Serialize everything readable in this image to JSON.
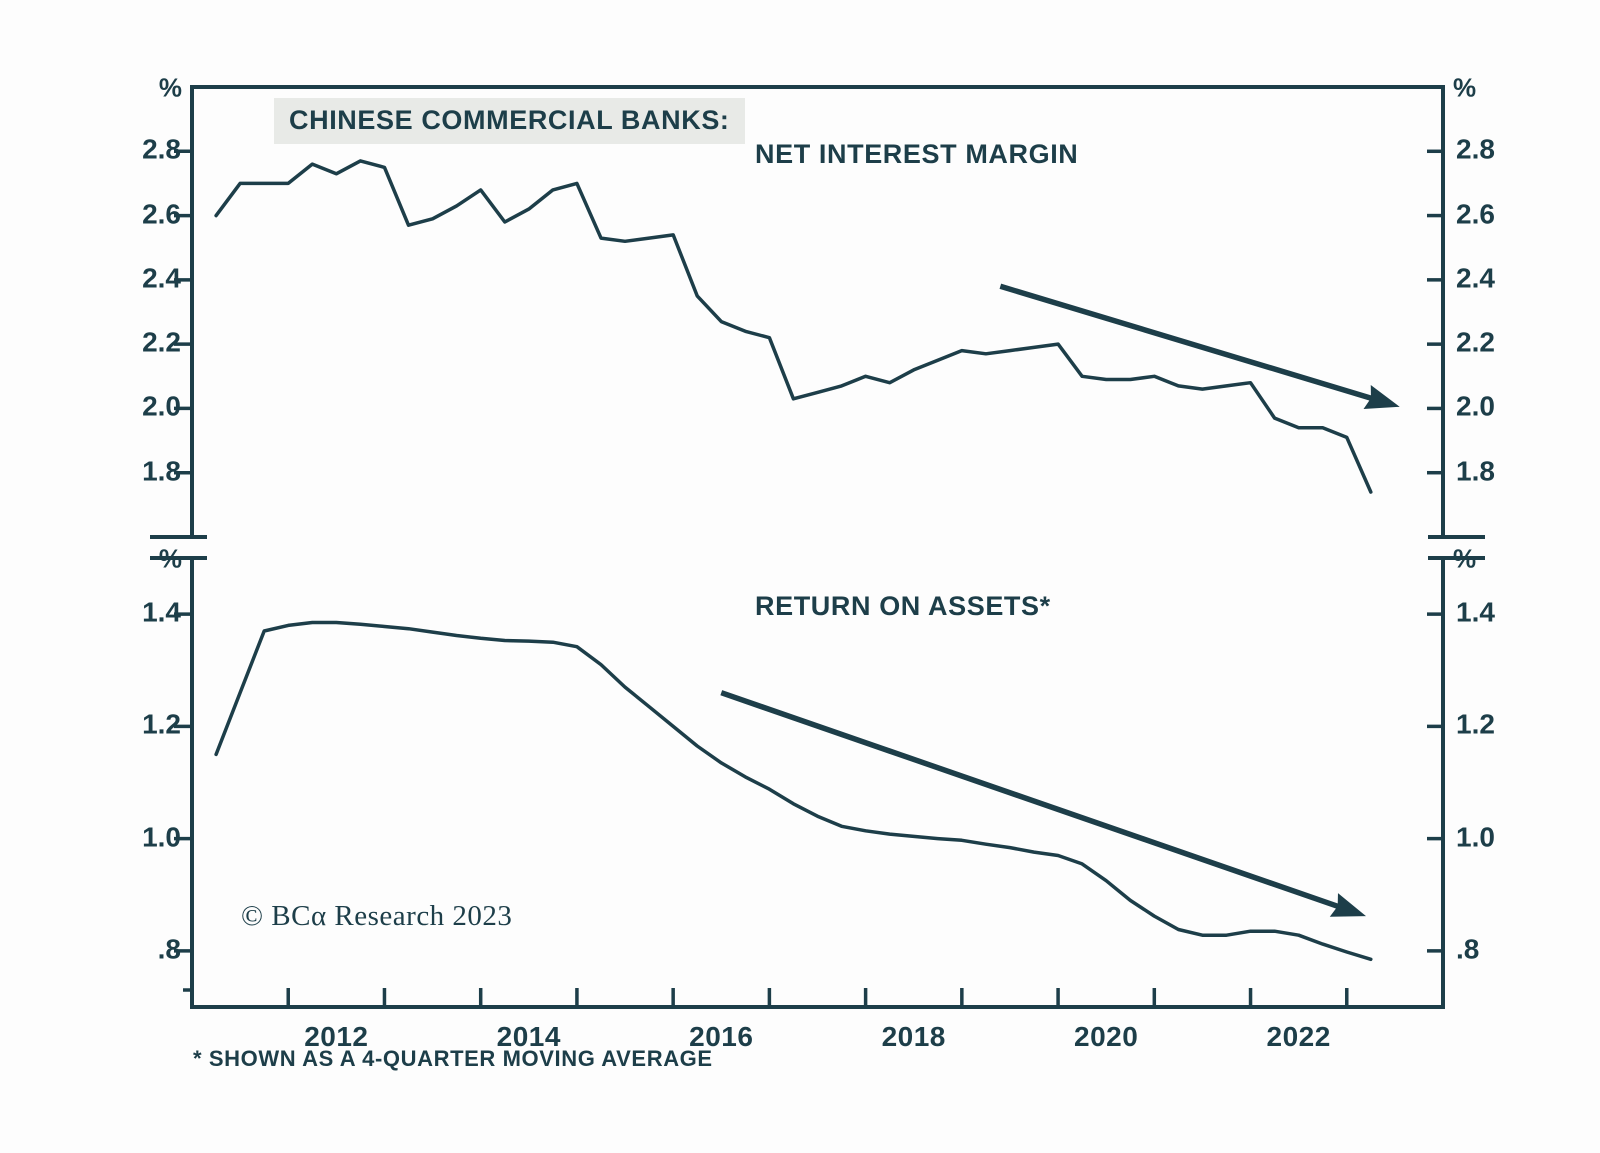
{
  "page": {
    "title": "CHINESE COMMERCIAL BANKS:",
    "watermark": "© BCα Research 2023",
    "footnote": "* SHOWN AS A 4-QUARTER MOVING AVERAGE"
  },
  "colors": {
    "line": "#1d3e49",
    "text": "#1d3e49",
    "title_box_bg": "#e8eae7",
    "background": "#fdfdfd"
  },
  "chart_data": {
    "type": "line",
    "title": "CHINESE COMMERCIAL BANKS:",
    "footnote": "* SHOWN AS A 4-QUARTER MOVING AVERAGE",
    "x_axis": {
      "range": [
        2011,
        2024
      ],
      "year_ticks": [
        2012,
        2013,
        2014,
        2015,
        2016,
        2017,
        2018,
        2019,
        2020,
        2021,
        2022,
        2023
      ],
      "labeled_years": [
        2012,
        2014,
        2016,
        2018,
        2020,
        2022
      ],
      "grid": false
    },
    "panels": [
      {
        "name": "net-interest-margin",
        "title": "NET INTEREST MARGIN",
        "unit": "%",
        "ylim": [
          1.6,
          3.0
        ],
        "yticks": [
          {
            "v": 2.8,
            "label": "2.8"
          },
          {
            "v": 2.6,
            "label": "2.6"
          },
          {
            "v": 2.4,
            "label": "2.4"
          },
          {
            "v": 2.2,
            "label": "2.2"
          },
          {
            "v": 2.0,
            "label": "2.0"
          },
          {
            "v": 1.8,
            "label": "1.8"
          }
        ],
        "series": {
          "name": "Net interest margin (%)",
          "start": 2011.25,
          "step": 0.25,
          "values": [
            2.6,
            2.7,
            2.7,
            2.7,
            2.76,
            2.73,
            2.77,
            2.75,
            2.57,
            2.59,
            2.63,
            2.68,
            2.58,
            2.62,
            2.68,
            2.7,
            2.53,
            2.52,
            2.53,
            2.54,
            2.35,
            2.27,
            2.24,
            2.22,
            2.03,
            2.05,
            2.07,
            2.1,
            2.08,
            2.12,
            2.15,
            2.18,
            2.17,
            2.18,
            2.19,
            2.2,
            2.1,
            2.09,
            2.09,
            2.1,
            2.07,
            2.06,
            2.07,
            2.08,
            1.97,
            1.94,
            1.94,
            1.91,
            1.74
          ]
        },
        "trend_arrow": {
          "x1": 2019.4,
          "y1": 2.38,
          "x2": 2023.55,
          "y2": 2.005
        }
      },
      {
        "name": "return-on-assets",
        "title": "RETURN ON ASSETS*",
        "unit": "%",
        "ylim": [
          0.7,
          1.5
        ],
        "yticks": [
          {
            "v": 1.4,
            "label": "1.4"
          },
          {
            "v": 1.2,
            "label": "1.2"
          },
          {
            "v": 1.0,
            "label": "1.0"
          },
          {
            "v": 0.8,
            "label": ".8"
          }
        ],
        "series": {
          "name": "Return on assets, 4-quarter moving average (%)",
          "start": 2011.25,
          "step": 0.25,
          "values": [
            1.15,
            1.26,
            1.37,
            1.38,
            1.385,
            1.385,
            1.382,
            1.378,
            1.374,
            1.368,
            1.362,
            1.357,
            1.353,
            1.352,
            1.35,
            1.342,
            1.31,
            1.27,
            1.235,
            1.2,
            1.165,
            1.135,
            1.11,
            1.088,
            1.062,
            1.04,
            1.022,
            1.014,
            1.008,
            1.004,
            1.0,
            0.997,
            0.99,
            0.984,
            0.976,
            0.97,
            0.955,
            0.925,
            0.89,
            0.862,
            0.838,
            0.828,
            0.828,
            0.835,
            0.835,
            0.828,
            0.812,
            0.798,
            0.785
          ]
        },
        "trend_arrow": {
          "x1": 2016.5,
          "y1": 1.26,
          "x2": 2023.2,
          "y2": 0.862
        }
      }
    ]
  }
}
